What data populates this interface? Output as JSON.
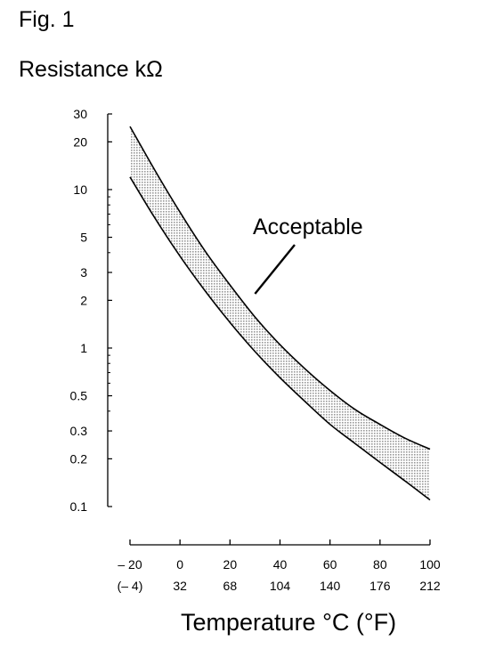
{
  "figure_label": "Fig. 1",
  "chart_data": {
    "type": "line",
    "title": "",
    "ylabel": "Resistance kΩ",
    "xlabel": "Temperature °C (°F)",
    "y_scale": "log",
    "ylim": [
      0.1,
      30
    ],
    "xlim": [
      -20,
      100
    ],
    "y_ticks": [
      {
        "value": 30,
        "label": "30"
      },
      {
        "value": 20,
        "label": "20"
      },
      {
        "value": 10,
        "label": "10"
      },
      {
        "value": 5,
        "label": "5"
      },
      {
        "value": 3,
        "label": "3"
      },
      {
        "value": 2,
        "label": "2"
      },
      {
        "value": 1,
        "label": "1"
      },
      {
        "value": 0.5,
        "label": "0.5"
      },
      {
        "value": 0.3,
        "label": "0.3"
      },
      {
        "value": 0.2,
        "label": "0.2"
      },
      {
        "value": 0.1,
        "label": "0.1"
      }
    ],
    "x_ticks": [
      {
        "value": -20,
        "celsius": "– 20",
        "fahrenheit": "(– 4)"
      },
      {
        "value": 0,
        "celsius": "0",
        "fahrenheit": "32"
      },
      {
        "value": 20,
        "celsius": "20",
        "fahrenheit": "68"
      },
      {
        "value": 40,
        "celsius": "40",
        "fahrenheit": "104"
      },
      {
        "value": 60,
        "celsius": "60",
        "fahrenheit": "140"
      },
      {
        "value": 80,
        "celsius": "80",
        "fahrenheit": "176"
      },
      {
        "value": 100,
        "celsius": "100",
        "fahrenheit": "212"
      }
    ],
    "series": [
      {
        "x": [
          -20,
          -10,
          0,
          10,
          20,
          30,
          40,
          50,
          60,
          70,
          80,
          90,
          100
        ],
        "values": [
          25,
          13.2,
          7.2,
          4.1,
          2.5,
          1.57,
          1.05,
          0.74,
          0.54,
          0.41,
          0.33,
          0.27,
          0.23
        ]
      },
      {
        "x": [
          -20,
          -10,
          0,
          10,
          20,
          30,
          40,
          50,
          60,
          70,
          80,
          90,
          100
        ],
        "values": [
          12,
          6.6,
          3.8,
          2.3,
          1.45,
          0.95,
          0.65,
          0.46,
          0.33,
          0.25,
          0.19,
          0.145,
          0.11
        ]
      }
    ],
    "band_fill": "#b8b8b8",
    "annotations": [
      {
        "text": "Acceptable",
        "x": 30,
        "y": 2.2
      }
    ]
  }
}
